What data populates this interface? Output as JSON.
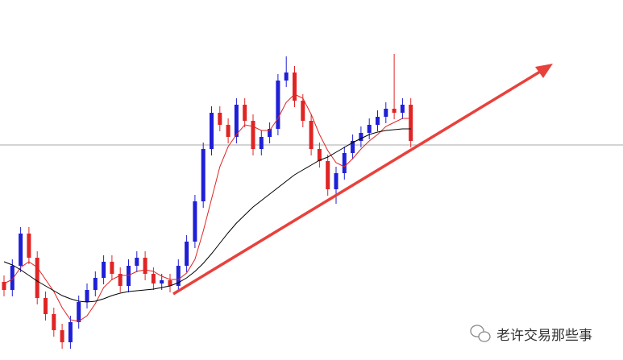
{
  "chart_data": {
    "type": "candlestick",
    "open": [
      97,
      87,
      117,
      157,
      127,
      77,
      57,
      37,
      22,
      47,
      72,
      87,
      102,
      122,
      107,
      92,
      117,
      127,
      107,
      95,
      99,
      92,
      117,
      147,
      197,
      262,
      307,
      292,
      277,
      317,
      297,
      262,
      277,
      287,
      347,
      357,
      322,
      297,
      262,
      247,
      212,
      232,
      257,
      272,
      282,
      292,
      302,
      312,
      307,
      317
    ],
    "high": [
      105,
      125,
      165,
      165,
      135,
      85,
      65,
      45,
      55,
      80,
      95,
      110,
      130,
      130,
      115,
      125,
      135,
      135,
      115,
      107,
      107,
      125,
      155,
      205,
      270,
      315,
      315,
      300,
      325,
      325,
      305,
      285,
      295,
      355,
      377,
      365,
      330,
      305,
      270,
      255,
      240,
      265,
      280,
      290,
      300,
      310,
      320,
      380,
      325,
      325
    ],
    "low": [
      79,
      79,
      109,
      119,
      69,
      49,
      29,
      14,
      14,
      39,
      64,
      79,
      94,
      99,
      84,
      84,
      109,
      99,
      87,
      87,
      84,
      84,
      109,
      139,
      189,
      254,
      284,
      269,
      269,
      289,
      254,
      254,
      269,
      279,
      339,
      314,
      289,
      254,
      239,
      204,
      194,
      224,
      249,
      264,
      274,
      284,
      294,
      299,
      299,
      264
    ],
    "close": [
      87,
      117,
      157,
      127,
      77,
      57,
      37,
      22,
      47,
      72,
      87,
      102,
      122,
      107,
      92,
      117,
      127,
      107,
      95,
      99,
      92,
      117,
      147,
      197,
      262,
      307,
      292,
      277,
      317,
      297,
      262,
      277,
      287,
      347,
      357,
      322,
      297,
      262,
      247,
      212,
      232,
      257,
      272,
      282,
      292,
      302,
      312,
      307,
      317,
      272
    ],
    "up_color": "#1f1fd6",
    "down_color": "#e02424",
    "series": [
      {
        "color": "#e02424",
        "values": [
          95,
          100,
          115,
          122,
          115,
          100,
          85,
          65,
          50,
          48,
          55,
          70,
          90,
          100,
          105,
          105,
          110,
          112,
          110,
          104,
          100,
          100,
          108,
          125,
          160,
          200,
          240,
          265,
          280,
          292,
          290,
          285,
          285,
          300,
          320,
          330,
          325,
          305,
          280,
          260,
          245,
          240,
          250,
          262,
          272,
          280,
          290,
          295,
          300,
          300
        ]
      },
      {
        "color": "#000000",
        "values": [
          122,
          118,
          112,
          105,
          98,
          92,
          86,
          80,
          76,
          73,
          72,
          73,
          76,
          80,
          83,
          85,
          86,
          87,
          88,
          90,
          92,
          96,
          102,
          110,
          120,
          132,
          145,
          158,
          170,
          180,
          190,
          198,
          206,
          214,
          222,
          230,
          236,
          242,
          248,
          252,
          258,
          264,
          270,
          275,
          280,
          283,
          285,
          286,
          287,
          287
        ]
      }
    ],
    "ylim": [
      0,
      447
    ],
    "hline": 267,
    "watermark": "老许交易那些事"
  }
}
